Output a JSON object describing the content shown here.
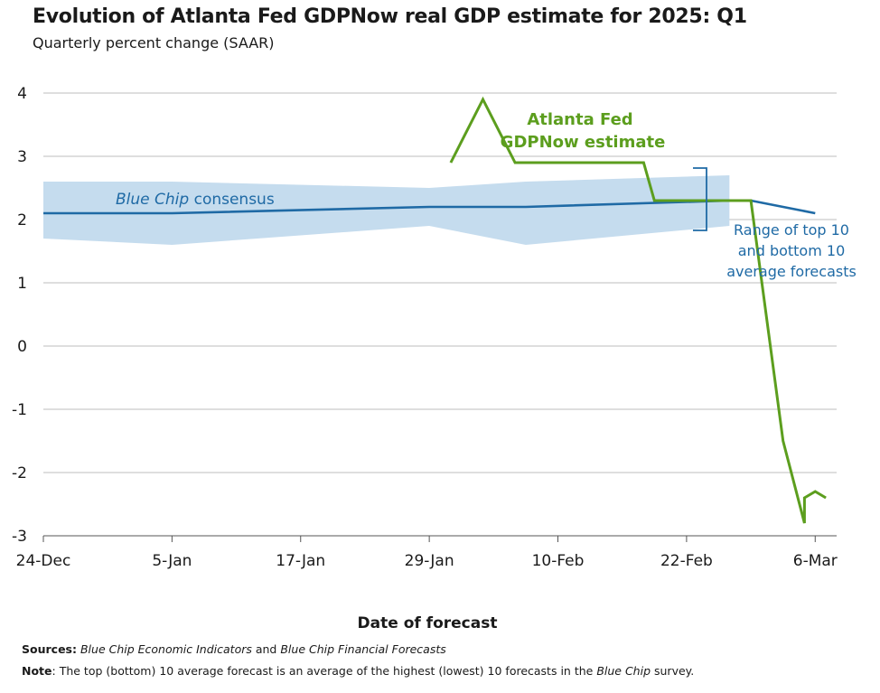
{
  "title": "Evolution of Atlanta Fed GDPNow real GDP estimate for 2025: Q1",
  "subtitle": "Quarterly percent change (SAAR)",
  "chart_data": {
    "type": "line",
    "title": "Evolution of Atlanta Fed GDPNow real GDP estimate for 2025: Q1",
    "subtitle": "Quarterly percent change (SAAR)",
    "xlabel": "Date of forecast",
    "ylabel": "",
    "x_ticks": [
      "24-Dec",
      "5-Jan",
      "17-Jan",
      "29-Jan",
      "10-Feb",
      "22-Feb",
      "6-Mar"
    ],
    "y_ticks": [
      "4",
      "3",
      "2",
      "1",
      "0",
      "-1",
      "-2",
      "-3"
    ],
    "ylim": [
      -3,
      4
    ],
    "xlim": [
      "2024-12-24",
      "2025-03-08"
    ],
    "grid": "horizontal",
    "series": [
      {
        "name": "Blue Chip consensus",
        "color": "#1f6aa5",
        "points": [
          [
            "2024-12-24",
            2.1
          ],
          [
            "2025-01-05",
            2.1
          ],
          [
            "2025-01-29",
            2.2
          ],
          [
            "2025-02-07",
            2.2
          ],
          [
            "2025-02-26",
            2.3
          ],
          [
            "2025-02-28",
            2.3
          ],
          [
            "2025-03-06",
            2.1
          ]
        ]
      },
      {
        "name": "Atlanta Fed GDPNow estimate",
        "color": "#5c9e1e",
        "points": [
          [
            "2025-01-31",
            2.9
          ],
          [
            "2025-02-03",
            3.9
          ],
          [
            "2025-02-06",
            2.9
          ],
          [
            "2025-02-07",
            2.9
          ],
          [
            "2025-02-18",
            2.9
          ],
          [
            "2025-02-19",
            2.3
          ],
          [
            "2025-02-26",
            2.3
          ],
          [
            "2025-02-28",
            2.3
          ],
          [
            "2025-03-03",
            -1.5
          ],
          [
            "2025-03-05",
            -2.8
          ],
          [
            "2025-03-05",
            -2.4
          ],
          [
            "2025-03-06",
            -2.3
          ],
          [
            "2025-03-07",
            -2.4
          ]
        ]
      }
    ],
    "band": {
      "name": "Range of top 10 and bottom 10 average forecasts",
      "color": "#c5dcee",
      "upper": [
        [
          "2024-12-24",
          2.6
        ],
        [
          "2025-01-05",
          2.6
        ],
        [
          "2025-01-29",
          2.5
        ],
        [
          "2025-02-07",
          2.6
        ],
        [
          "2025-02-26",
          2.7
        ]
      ],
      "lower": [
        [
          "2024-12-24",
          1.7
        ],
        [
          "2025-01-05",
          1.6
        ],
        [
          "2025-01-29",
          1.9
        ],
        [
          "2025-02-07",
          1.6
        ],
        [
          "2025-02-26",
          1.9
        ]
      ]
    },
    "annotations": {
      "blue_chip": "Blue Chip",
      "consensus": " consensus",
      "gdpnow_line1": "Atlanta Fed",
      "gdpnow_line2": "GDPNow estimate",
      "range_line1": "Range of top 10",
      "range_line2": "and bottom 10",
      "range_line3": "average forecasts"
    }
  },
  "xlabel": "Date of forecast",
  "sources": {
    "label": "Sources:",
    "part1": "Blue Chip Economic Indicators",
    "and": " and ",
    "part2": "Blue Chip Financial Forecasts"
  },
  "note": {
    "label": "Note",
    "text1": ": The top (bottom) 10 average forecast is an average of the highest (lowest) 10 forecasts in the ",
    "blue_chip": "Blue Chip",
    "text2": " survey."
  }
}
